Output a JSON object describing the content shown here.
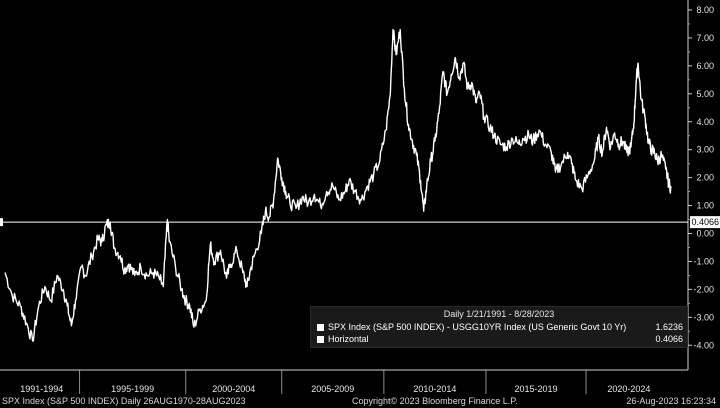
{
  "chart_data": {
    "type": "line",
    "ylim": [
      -4.3,
      8.3
    ],
    "y_ticks": [
      "8.00",
      "7.00",
      "6.00",
      "5.00",
      "4.00",
      "3.00",
      "2.00",
      "1.00",
      "0.00",
      "-1.00",
      "-2.00",
      "-3.00",
      "-4.00"
    ],
    "x_ticks": [
      "1991-1994",
      "1995-1999",
      "2000-2004",
      "2005-2009",
      "2010-2014",
      "2015-2019",
      "2020-2024"
    ],
    "x_range": [
      1991.05,
      2023.66
    ],
    "series": [
      {
        "name": "SPX Index (S&P 500 INDEX) - USGG10YR Index (US Generic Govt 10 Yr)",
        "color": "#ffffff",
        "last_value": "1.6236",
        "points": [
          [
            1991.05,
            -1.4
          ],
          [
            1991.4,
            -2.2
          ],
          [
            1991.8,
            -2.6
          ],
          [
            1992.1,
            -3.2
          ],
          [
            1992.4,
            -3.85
          ],
          [
            1992.7,
            -2.6
          ],
          [
            1993.0,
            -1.9
          ],
          [
            1993.3,
            -2.4
          ],
          [
            1993.6,
            -1.5
          ],
          [
            1993.9,
            -2.0
          ],
          [
            1994.1,
            -2.6
          ],
          [
            1994.3,
            -3.3
          ],
          [
            1994.5,
            -2.4
          ],
          [
            1994.8,
            -1.2
          ],
          [
            1995.0,
            -1.5
          ],
          [
            1995.3,
            -0.8
          ],
          [
            1995.6,
            -0.2
          ],
          [
            1995.8,
            -0.3
          ],
          [
            1996.0,
            0.3
          ],
          [
            1996.2,
            0.4
          ],
          [
            1996.4,
            -0.5
          ],
          [
            1996.7,
            -0.8
          ],
          [
            1996.9,
            -1.3
          ],
          [
            1997.1,
            -1.1
          ],
          [
            1997.4,
            -1.5
          ],
          [
            1997.7,
            -1.2
          ],
          [
            1998.0,
            -1.5
          ],
          [
            1998.3,
            -1.4
          ],
          [
            1998.6,
            -1.6
          ],
          [
            1998.8,
            -1.9
          ],
          [
            1999.0,
            0.5
          ],
          [
            1999.1,
            -0.3
          ],
          [
            1999.4,
            -1.2
          ],
          [
            1999.7,
            -2.0
          ],
          [
            1999.9,
            -2.4
          ],
          [
            2000.1,
            -2.6
          ],
          [
            2000.3,
            -3.35
          ],
          [
            2000.6,
            -2.7
          ],
          [
            2000.9,
            -2.4
          ],
          [
            2001.1,
            -0.4
          ],
          [
            2001.3,
            -1.0
          ],
          [
            2001.6,
            -0.6
          ],
          [
            2001.9,
            -1.6
          ],
          [
            2002.1,
            -1.1
          ],
          [
            2002.4,
            -0.6
          ],
          [
            2002.7,
            -1.4
          ],
          [
            2002.9,
            -1.9
          ],
          [
            2003.1,
            -1.2
          ],
          [
            2003.3,
            -0.7
          ],
          [
            2003.6,
            0.0
          ],
          [
            2003.8,
            0.8
          ],
          [
            2004.0,
            0.6
          ],
          [
            2004.2,
            1.2
          ],
          [
            2004.4,
            2.7
          ],
          [
            2004.6,
            2.0
          ],
          [
            2004.8,
            1.5
          ],
          [
            2005.0,
            1.1
          ],
          [
            2005.3,
            0.9
          ],
          [
            2005.6,
            1.3
          ],
          [
            2005.9,
            1.1
          ],
          [
            2006.2,
            1.4
          ],
          [
            2006.5,
            1.0
          ],
          [
            2006.8,
            1.5
          ],
          [
            2007.1,
            1.7
          ],
          [
            2007.4,
            1.2
          ],
          [
            2007.7,
            1.5
          ],
          [
            2007.9,
            1.9
          ],
          [
            2008.2,
            1.5
          ],
          [
            2008.5,
            1.2
          ],
          [
            2008.8,
            1.7
          ],
          [
            2009.1,
            2.1
          ],
          [
            2009.4,
            2.6
          ],
          [
            2009.7,
            3.7
          ],
          [
            2009.9,
            4.9
          ],
          [
            2010.05,
            7.3
          ],
          [
            2010.2,
            6.4
          ],
          [
            2010.4,
            7.3
          ],
          [
            2010.6,
            5.2
          ],
          [
            2010.8,
            3.9
          ],
          [
            2011.0,
            3.3
          ],
          [
            2011.2,
            2.8
          ],
          [
            2011.4,
            1.9
          ],
          [
            2011.55,
            0.8
          ],
          [
            2011.7,
            1.7
          ],
          [
            2011.9,
            2.6
          ],
          [
            2012.1,
            3.3
          ],
          [
            2012.3,
            4.3
          ],
          [
            2012.5,
            5.8
          ],
          [
            2012.7,
            5.0
          ],
          [
            2012.9,
            5.7
          ],
          [
            2013.1,
            6.3
          ],
          [
            2013.3,
            5.6
          ],
          [
            2013.5,
            6.1
          ],
          [
            2013.7,
            5.2
          ],
          [
            2013.9,
            5.4
          ],
          [
            2014.1,
            4.7
          ],
          [
            2014.3,
            5.0
          ],
          [
            2014.5,
            4.2
          ],
          [
            2014.8,
            3.8
          ],
          [
            2015.0,
            3.5
          ],
          [
            2015.3,
            3.2
          ],
          [
            2015.6,
            3.1
          ],
          [
            2015.9,
            3.4
          ],
          [
            2016.2,
            3.2
          ],
          [
            2016.4,
            3.4
          ],
          [
            2016.7,
            3.5
          ],
          [
            2016.9,
            3.3
          ],
          [
            2017.2,
            3.7
          ],
          [
            2017.5,
            3.2
          ],
          [
            2017.8,
            2.9
          ],
          [
            2018.0,
            2.2
          ],
          [
            2018.3,
            2.5
          ],
          [
            2018.6,
            2.9
          ],
          [
            2018.8,
            2.5
          ],
          [
            2019.0,
            1.9
          ],
          [
            2019.3,
            1.6
          ],
          [
            2019.6,
            2.1
          ],
          [
            2019.9,
            2.6
          ],
          [
            2020.1,
            3.4
          ],
          [
            2020.3,
            2.9
          ],
          [
            2020.5,
            3.8
          ],
          [
            2020.7,
            3.1
          ],
          [
            2020.9,
            3.6
          ],
          [
            2021.1,
            3.2
          ],
          [
            2021.3,
            3.3
          ],
          [
            2021.5,
            2.9
          ],
          [
            2021.7,
            3.1
          ],
          [
            2021.85,
            4.0
          ],
          [
            2021.95,
            5.4
          ],
          [
            2022.05,
            6.1
          ],
          [
            2022.2,
            4.8
          ],
          [
            2022.4,
            4.1
          ],
          [
            2022.55,
            3.3
          ],
          [
            2022.7,
            3.0
          ],
          [
            2022.85,
            2.9
          ],
          [
            2023.0,
            2.6
          ],
          [
            2023.2,
            2.8
          ],
          [
            2023.4,
            2.3
          ],
          [
            2023.55,
            1.8
          ],
          [
            2023.66,
            1.6236
          ]
        ]
      },
      {
        "name": "Horizontal",
        "color": "#ffffff",
        "last_value": "0.4066",
        "value": 0.4066
      }
    ],
    "legend": {
      "title": "Daily 1/21/1991 - 8/28/2023",
      "placement": "bottom-right"
    },
    "grid": false
  },
  "axis": {
    "horizontal_label": "0.4066"
  },
  "footer": {
    "left": "SPX Index (S&P 500 INDEX)  Daily 26AUG1970-28AUG2023",
    "center": "Copyright© 2023 Bloomberg Finance L.P.",
    "right": "26-Aug-2023 16:23:34"
  }
}
